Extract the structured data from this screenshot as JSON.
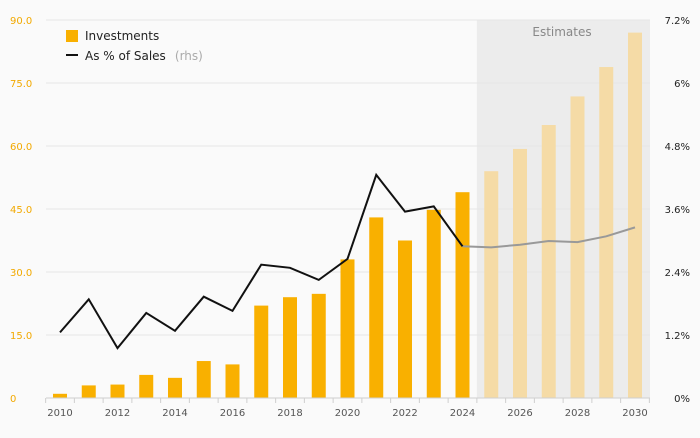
{
  "chart_data": {
    "type": "bar",
    "x": [
      2010,
      2011,
      2012,
      2013,
      2014,
      2015,
      2016,
      2017,
      2018,
      2019,
      2020,
      2021,
      2022,
      2023,
      2024,
      2025,
      2026,
      2027,
      2028,
      2029,
      2030
    ],
    "series": [
      {
        "name": "Investments",
        "kind": "bar",
        "axis": "left",
        "values": [
          1.0,
          3.0,
          3.2,
          5.5,
          4.8,
          8.8,
          8.0,
          22.0,
          24.0,
          24.8,
          33.0,
          43.0,
          37.5,
          44.8,
          49.0,
          54.0,
          59.3,
          65.0,
          71.8,
          78.8,
          87.0
        ],
        "color": "#f9b000",
        "estimate_color": "#f5dba6"
      },
      {
        "name": "As % of Sales",
        "name_suffix": "(rhs)",
        "kind": "line",
        "axis": "right",
        "values": [
          1.25,
          1.88,
          0.95,
          1.62,
          1.28,
          1.93,
          1.66,
          2.54,
          2.48,
          2.25,
          2.65,
          4.25,
          3.55,
          3.65,
          2.89,
          2.87,
          2.92,
          2.99,
          2.97,
          3.08,
          3.25
        ],
        "color": "#111111",
        "estimate_color": "#999999"
      }
    ],
    "y_left": {
      "ylim": [
        0,
        90
      ],
      "ticks": [
        "0",
        "15.0",
        "30.0",
        "45.0",
        "60.0",
        "75.0",
        "90.0"
      ],
      "tick_values": [
        0,
        15,
        30,
        45,
        60,
        75,
        90
      ]
    },
    "y_right": {
      "ylim": [
        0,
        7.2
      ],
      "ticks": [
        "0%",
        "1.2%",
        "2.4%",
        "3.6%",
        "4.8%",
        "6%",
        "7.2%"
      ],
      "tick_values": [
        0,
        1.2,
        2.4,
        3.6,
        4.8,
        6.0,
        7.2
      ]
    },
    "x_tick_labels": [
      "2010",
      "2012",
      "2014",
      "2016",
      "2018",
      "2020",
      "2022",
      "2024",
      "2026",
      "2028",
      "2030"
    ],
    "x_tick_values": [
      2010,
      2012,
      2014,
      2016,
      2018,
      2020,
      2022,
      2024,
      2026,
      2028,
      2030
    ],
    "estimate_start": 2025,
    "estimates_label": "Estimates",
    "legend_position": "top-left",
    "grid": true,
    "colors": {
      "left_axis": "#f2a900",
      "grid": "#e6e6e6",
      "estimate_band": "#ececec"
    }
  }
}
